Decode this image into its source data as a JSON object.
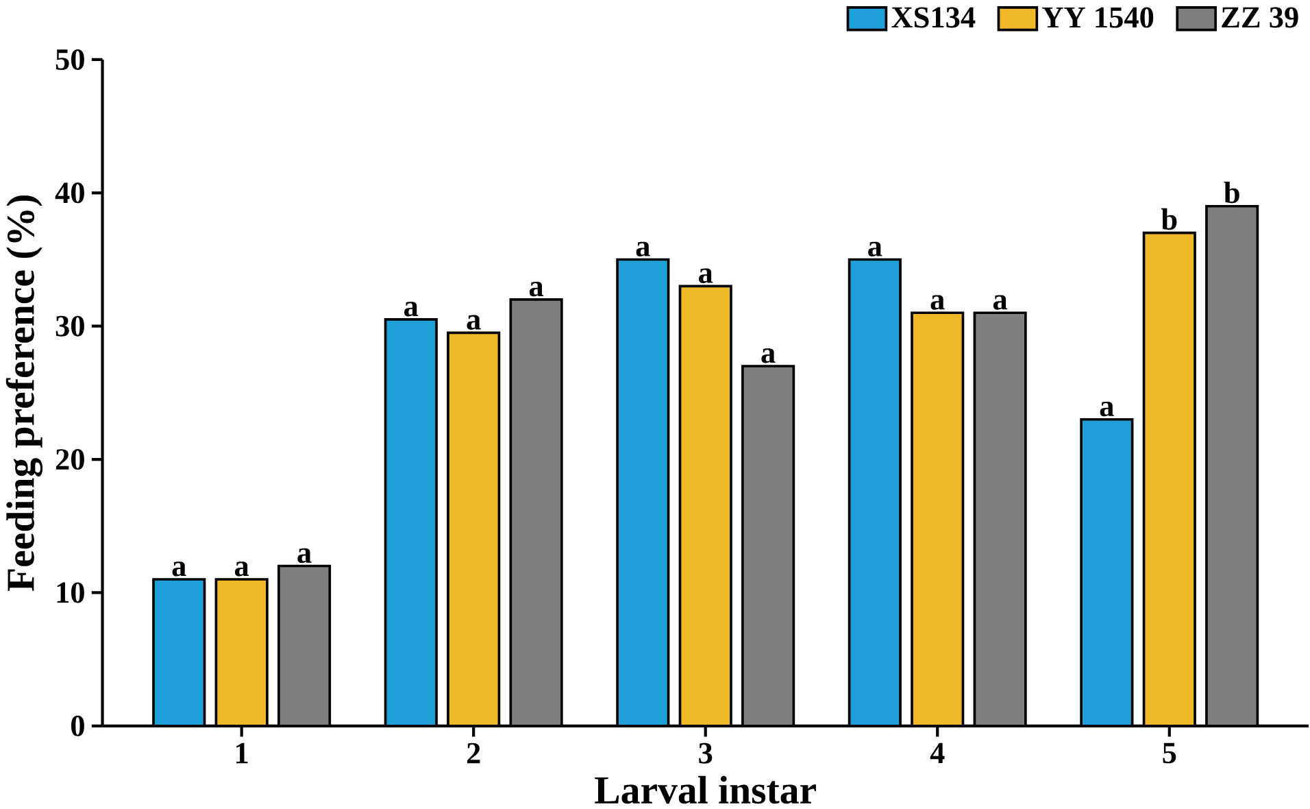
{
  "chart_data": {
    "type": "bar",
    "xlabel": "Larval instar",
    "ylabel": "Feeding preference (%)",
    "categories": [
      "1",
      "2",
      "3",
      "4",
      "5"
    ],
    "series": [
      {
        "name": "XS134",
        "color": "#1fa0d8",
        "values": [
          11,
          30.5,
          35,
          35,
          23
        ],
        "value_labels": [
          "a",
          "a",
          "a",
          "a",
          "a"
        ]
      },
      {
        "name": "YY 1540",
        "color": "#f0b929",
        "values": [
          11,
          29.5,
          33,
          31,
          37
        ],
        "value_labels": [
          "a",
          "a",
          "a",
          "a",
          "b"
        ]
      },
      {
        "name": "ZZ 39",
        "color": "#7f7f7f",
        "values": [
          12,
          32,
          27,
          31,
          39
        ],
        "value_labels": [
          "a",
          "a",
          "a",
          "a",
          "b"
        ]
      }
    ],
    "ylim": [
      0,
      50
    ],
    "yticks": [
      0,
      10,
      20,
      30,
      40,
      50
    ],
    "grid": false,
    "legend": "top right"
  }
}
